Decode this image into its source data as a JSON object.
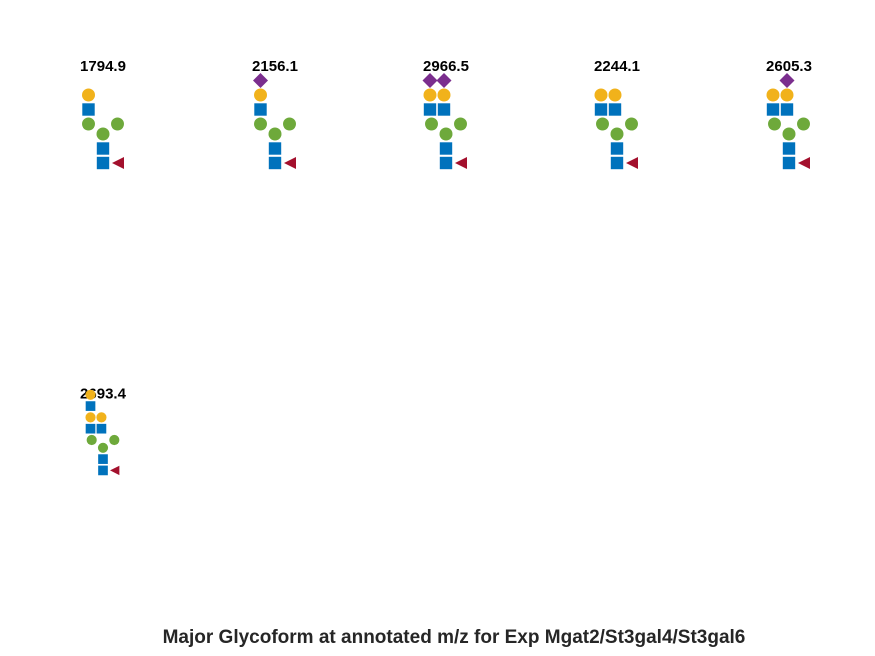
{
  "caption": "Major Glycoform at annotated m/z for Exp Mgat2/St3gal4/St3gal6",
  "colors": {
    "hexnac": "#0072bc",
    "galactose": "#f1b21b",
    "mannose": "#6ea93b",
    "fucose": "#a3102d",
    "neuac": "#7b2e8e",
    "text": "#000000",
    "caption": "#262626"
  },
  "glycans": [
    {
      "mz": "1794.9",
      "sialic_acids": 0,
      "galactoses": 1,
      "antennal_glcnac": 1,
      "lacnac_extension": 0,
      "core_fucose": true
    },
    {
      "mz": "2156.1",
      "sialic_acids": 1,
      "galactoses": 1,
      "antennal_glcnac": 1,
      "lacnac_extension": 0,
      "core_fucose": true
    },
    {
      "mz": "2966.5",
      "sialic_acids": 2,
      "galactoses": 2,
      "antennal_glcnac": 2,
      "lacnac_extension": 0,
      "core_fucose": true
    },
    {
      "mz": "2244.1",
      "sialic_acids": 0,
      "galactoses": 2,
      "antennal_glcnac": 2,
      "lacnac_extension": 0,
      "core_fucose": true
    },
    {
      "mz": "2605.3",
      "sialic_acids": 1,
      "galactoses": 2,
      "antennal_glcnac": 2,
      "lacnac_extension": 0,
      "core_fucose": true
    },
    {
      "mz": "2693.4",
      "sialic_acids": 0,
      "galactoses": 2,
      "antennal_glcnac": 2,
      "lacnac_extension": 1,
      "core_fucose": true
    }
  ]
}
